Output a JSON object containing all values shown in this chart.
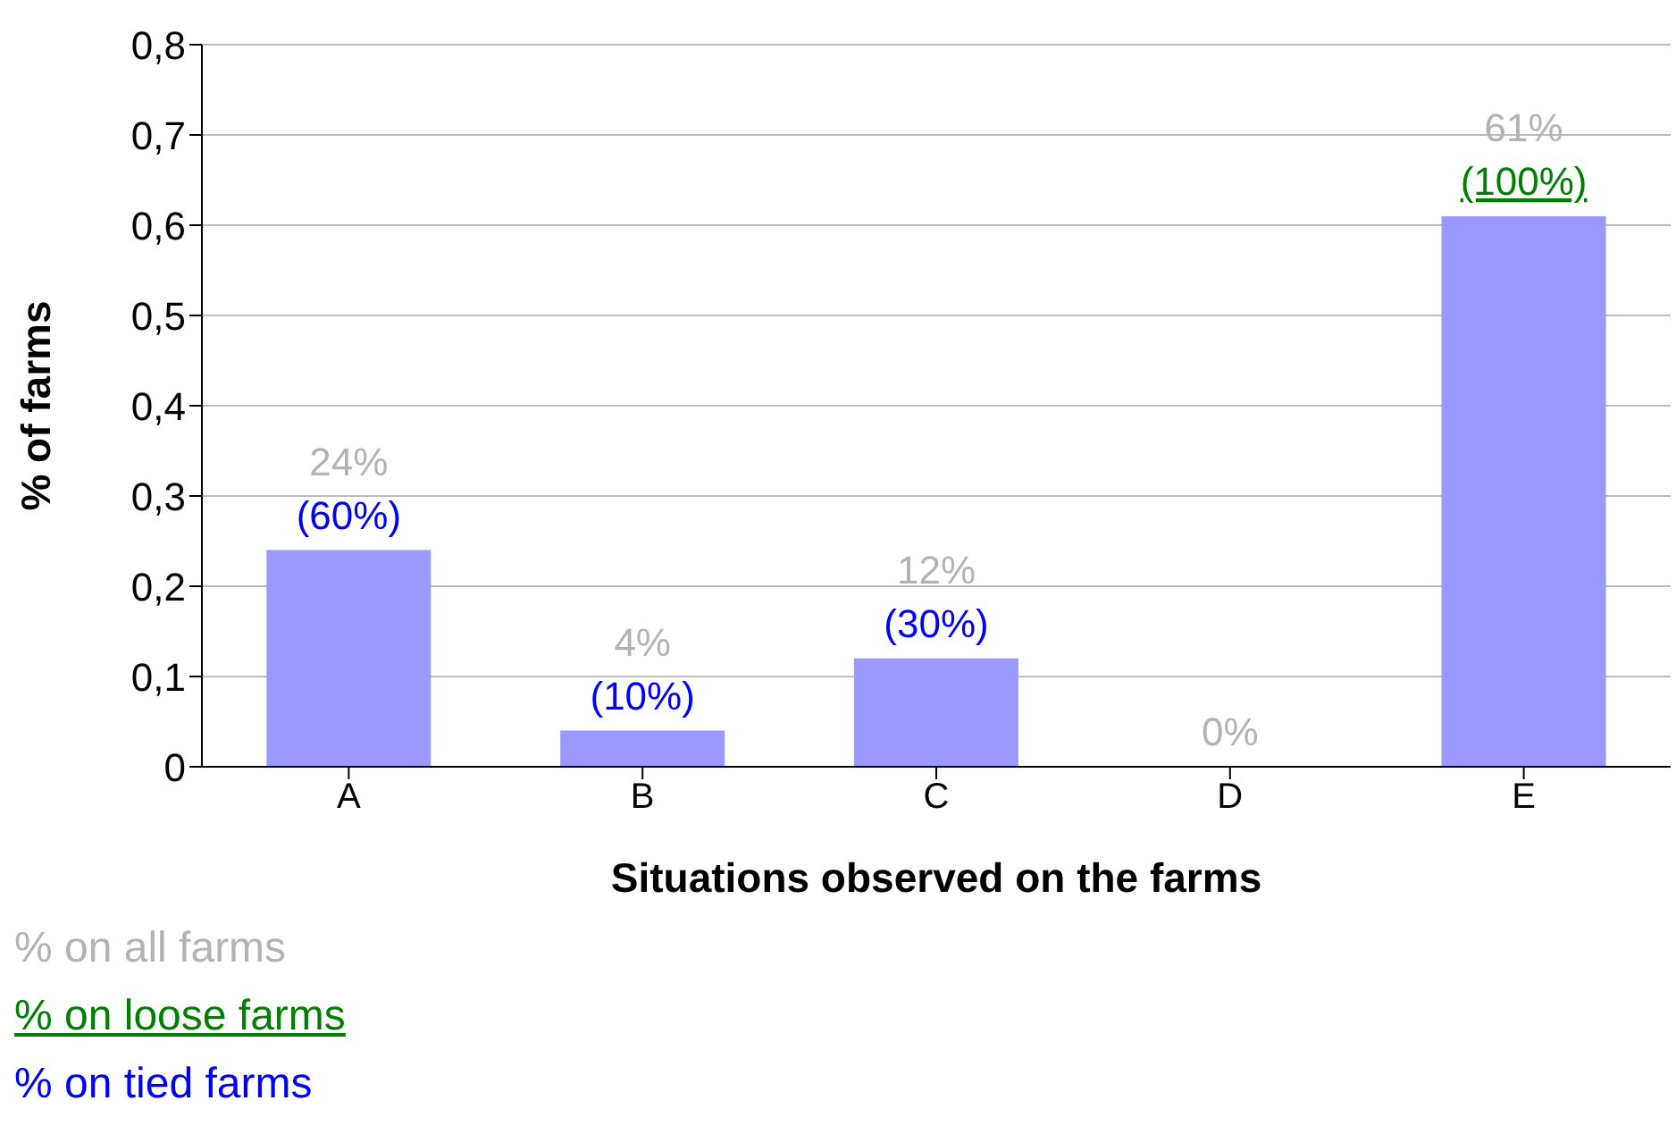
{
  "chart_data": {
    "type": "bar",
    "xlabel": "Situations observed on the farms",
    "ylabel": "% of farms",
    "categories": [
      "A",
      "B",
      "C",
      "D",
      "E"
    ],
    "values": [
      0.24,
      0.04,
      0.12,
      0,
      0.61
    ],
    "color": "#9999ff",
    "value_labels": [
      "24%",
      "4%",
      "12%",
      "0%",
      "61%"
    ],
    "ylim": [
      0,
      0.8
    ],
    "yticks": [
      0,
      {
        "value": 0.1,
        "label": "0,1"
      },
      {
        "value": 0.2,
        "label": "0,2"
      },
      {
        "value": 0.3,
        "label": "0,3"
      },
      {
        "value": 0.4,
        "label": "0,4"
      },
      {
        "value": 0.5,
        "label": "0,5"
      },
      {
        "value": 0.6,
        "label": "0,6"
      },
      {
        "value": 0.7,
        "label": "0,7"
      },
      {
        "value": 0.8,
        "label": "0,8"
      }
    ],
    "grid": "y",
    "annotations": [
      {
        "text": "(60%)",
        "x": "A",
        "y": 0.24
      },
      {
        "text": "(10%)",
        "x": "B",
        "y": 0.04
      },
      {
        "text": "(30%)",
        "x": "C",
        "y": 0.12
      },
      {
        "text": "(100%)",
        "x": "E",
        "y": 0.61
      },
      "% on all farms",
      "% on loose farms",
      "% on tied farms"
    ]
  }
}
